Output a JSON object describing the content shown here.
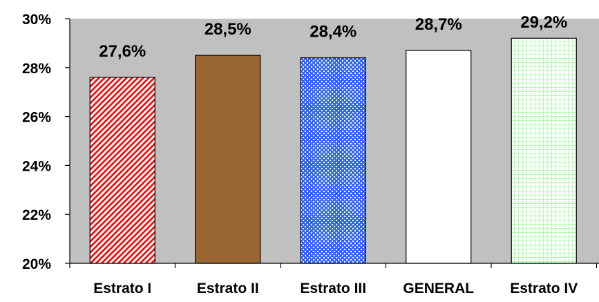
{
  "chart_data": {
    "type": "bar",
    "categories": [
      "Estrato I",
      "Estrato II",
      "Estrato III",
      "GENERAL",
      "Estrato IV"
    ],
    "values": [
      27.6,
      28.5,
      28.4,
      28.7,
      29.2
    ],
    "data_labels": [
      "27,6%",
      "28,5%",
      "28,4%",
      "28,7%",
      "29,2%"
    ],
    "ylim": [
      20,
      30
    ],
    "yticks": [
      20,
      22,
      24,
      26,
      28,
      30
    ],
    "ytick_labels": [
      "20%",
      "22%",
      "24%",
      "26%",
      "28%",
      "30%"
    ],
    "title": "",
    "xlabel": "",
    "ylabel": "",
    "grid": false,
    "legend": "none",
    "plot_background": "#c0c0c0",
    "bar_styles": [
      {
        "pattern": "red-diagonal-stripes",
        "color": "#ff0000"
      },
      {
        "pattern": "solid",
        "color": "#996633"
      },
      {
        "pattern": "blue-checker",
        "color": "#3366ff"
      },
      {
        "pattern": "solid",
        "color": "#ffffff"
      },
      {
        "pattern": "green-grid",
        "color": "#99ff99"
      }
    ]
  }
}
